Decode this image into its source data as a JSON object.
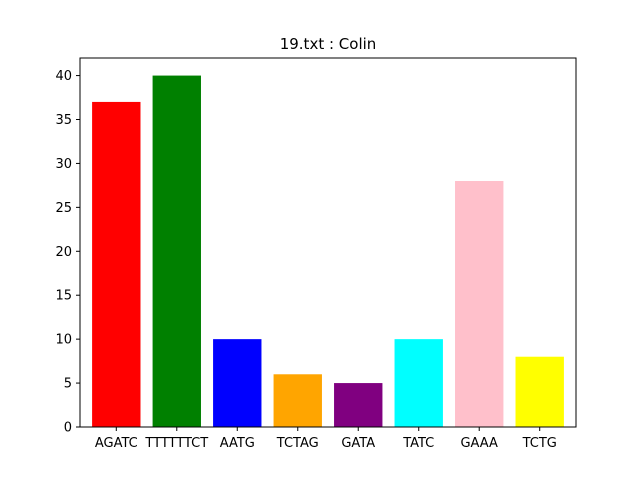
{
  "chart_data": {
    "type": "bar",
    "title": "19.txt : Colin",
    "xlabel": "",
    "ylabel": "",
    "categories": [
      "AGATC",
      "TTTTTTCT",
      "AATG",
      "TCTAG",
      "GATA",
      "TATC",
      "GAAA",
      "TCTG"
    ],
    "values": [
      37,
      40,
      10,
      6,
      5,
      10,
      28,
      8
    ],
    "colors": [
      "#ff0000",
      "#008000",
      "#0000ff",
      "#ffa500",
      "#800080",
      "#00ffff",
      "#ffc0cb",
      "#ffff00"
    ],
    "ylim": [
      0,
      42
    ],
    "yticks": [
      0,
      5,
      10,
      15,
      20,
      25,
      30,
      35,
      40
    ],
    "grid": false,
    "legend": "none"
  }
}
